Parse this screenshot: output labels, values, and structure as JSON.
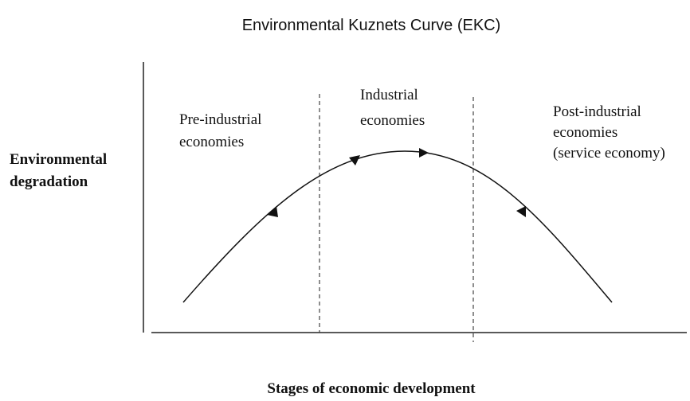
{
  "title": "Environmental Kuznets Curve (EKC)",
  "y_axis_label": [
    "Environmental",
    "degradation"
  ],
  "x_axis_label": "Stages of economic development",
  "stages": [
    {
      "lines": [
        "Pre-industrial",
        "economies"
      ]
    },
    {
      "lines": [
        "Industrial",
        "economies"
      ]
    },
    {
      "lines": [
        "Post-industrial",
        "economies",
        "(service economy)"
      ]
    }
  ]
}
